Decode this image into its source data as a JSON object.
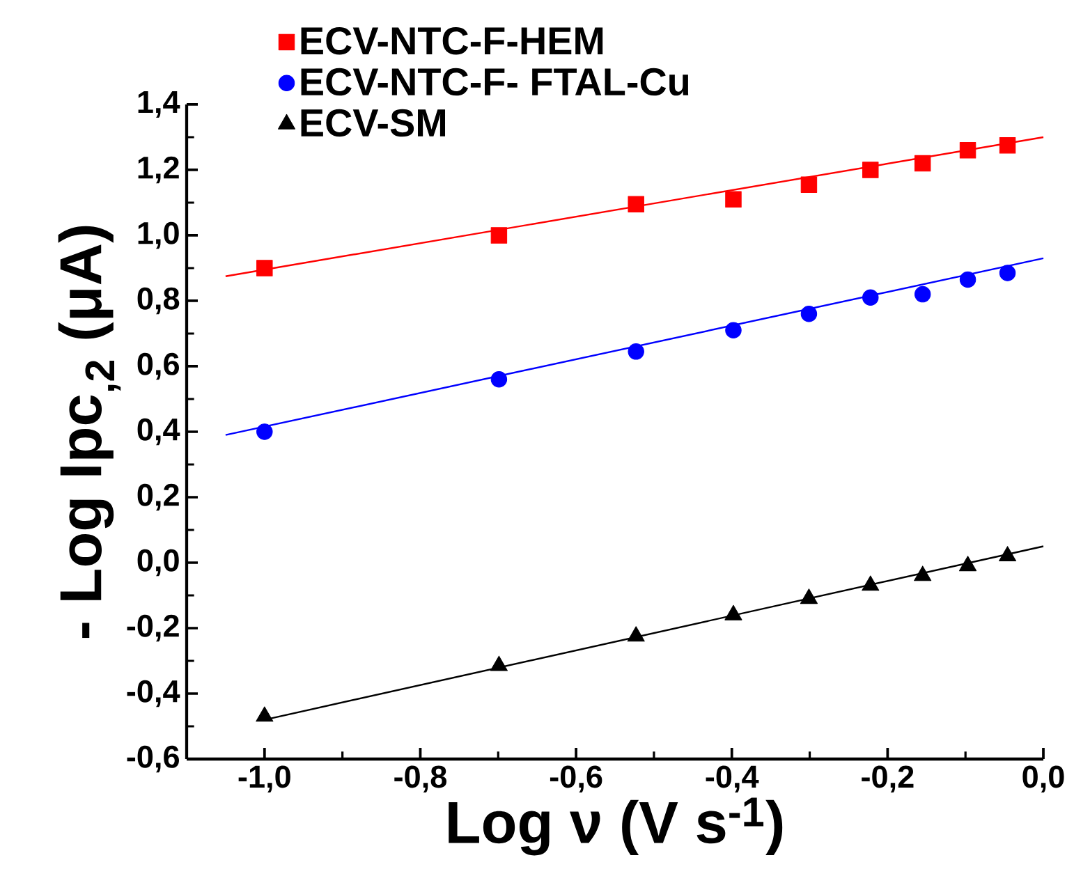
{
  "chart_data": {
    "type": "scatter",
    "xlabel": "Log ν (V s$^{-1}$)",
    "ylabel": "- Log Ipc$_{,2}$ (μA)",
    "xlim": [
      -1.1,
      0.0
    ],
    "ylim": [
      -0.6,
      1.4
    ],
    "xticks": [
      {
        "value": -1.0,
        "label": "-1,0"
      },
      {
        "value": -0.8,
        "label": "-0,8"
      },
      {
        "value": -0.6,
        "label": "-0,6"
      },
      {
        "value": -0.4,
        "label": "-0,4"
      },
      {
        "value": -0.2,
        "label": "-0,2"
      },
      {
        "value": 0.0,
        "label": "0,0"
      }
    ],
    "yticks": [
      {
        "value": -0.6,
        "label": "-0,6"
      },
      {
        "value": -0.4,
        "label": "-0,4"
      },
      {
        "value": -0.2,
        "label": "-0,2"
      },
      {
        "value": 0.0,
        "label": "0,0"
      },
      {
        "value": 0.2,
        "label": "0,2"
      },
      {
        "value": 0.4,
        "label": "0,4"
      },
      {
        "value": 0.6,
        "label": "0,6"
      },
      {
        "value": 0.8,
        "label": "0,8"
      },
      {
        "value": 1.0,
        "label": "1,0"
      },
      {
        "value": 1.2,
        "label": "1,2"
      },
      {
        "value": 1.4,
        "label": "1,4"
      }
    ],
    "grid": false,
    "legend": "top left",
    "x": [
      -1.0,
      -0.699,
      -0.523,
      -0.398,
      -0.301,
      -0.222,
      -0.155,
      -0.097,
      -0.046
    ],
    "series": [
      {
        "name": "ECV-NTC-F-HEM",
        "color": "#ff0000",
        "marker": "square",
        "values": [
          0.9,
          1.0,
          1.095,
          1.11,
          1.155,
          1.2,
          1.22,
          1.26,
          1.275
        ]
      },
      {
        "name": "ECV-NTC-F- FTAL-Cu",
        "color": "#0000ff",
        "marker": "circle",
        "values": [
          0.4,
          0.56,
          0.645,
          0.71,
          0.76,
          0.81,
          0.82,
          0.865,
          0.885
        ]
      },
      {
        "name": "ECV-SM",
        "color": "#000000",
        "marker": "triangle",
        "values": [
          -0.47,
          -0.315,
          -0.225,
          -0.16,
          -0.11,
          -0.07,
          -0.04,
          -0.01,
          0.02
        ]
      },
      {
        "type": "line",
        "color": "#ff0000",
        "marker": "none",
        "x": [
          -1.05,
          0.0
        ],
        "values": [
          0.875,
          1.3
        ]
      },
      {
        "type": "line",
        "color": "#0000ff",
        "marker": "none",
        "x": [
          -1.05,
          0.0
        ],
        "values": [
          0.39,
          0.93
        ]
      },
      {
        "type": "line",
        "color": "#000000",
        "marker": "none",
        "x": [
          -1.0,
          0.0
        ],
        "values": [
          -0.48,
          0.05
        ]
      }
    ]
  }
}
